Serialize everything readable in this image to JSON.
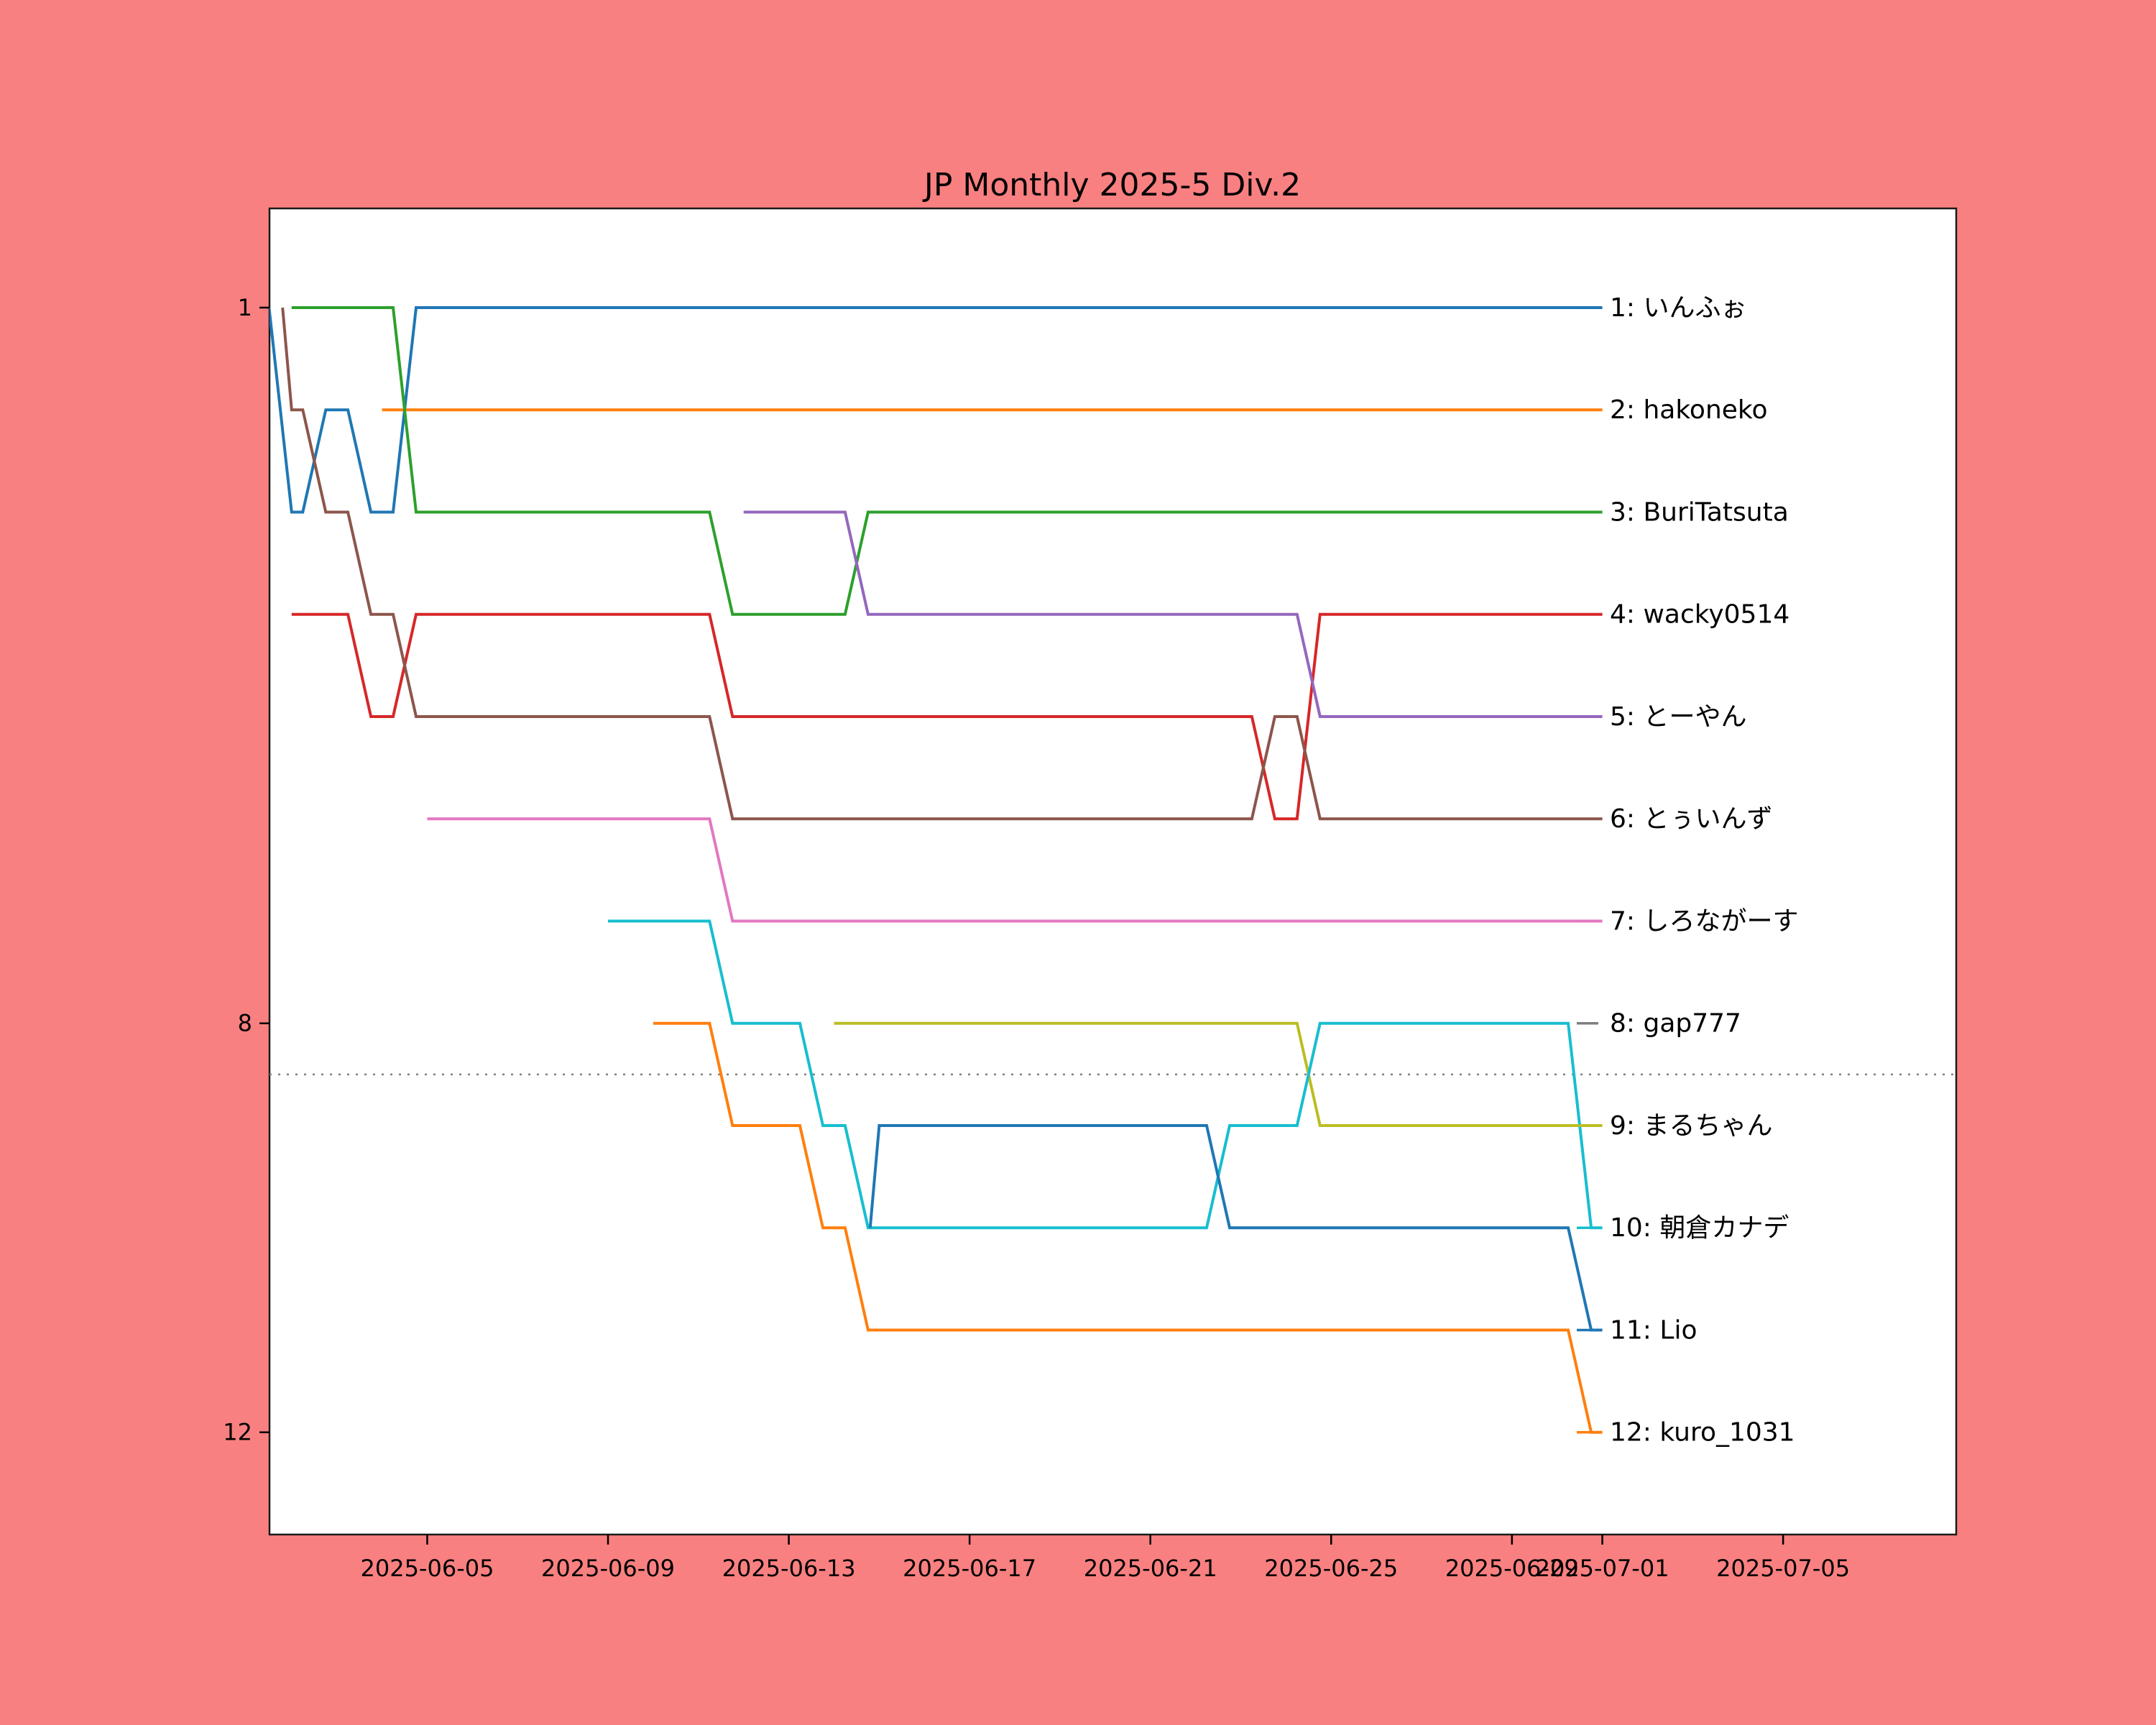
{
  "title": "JP Monthly 2025-5 Div.2",
  "colors": {
    "figure_background": "#f98080",
    "plot_background": "#ffffff",
    "plot_border": "#1a1a1a",
    "tick_text": "#000000",
    "promotion_line": "#808080"
  },
  "chart_data": {
    "type": "line",
    "subtype": "bump-ranking",
    "title": "JP Monthly 2025-5 Div.2",
    "xlabel": "",
    "ylabel": "",
    "day1_date": "2025-06-01",
    "xlim_days": [
      1.51,
      38.83
    ],
    "ylim_rank": [
      0.03,
      13.0
    ],
    "grid": false,
    "legend_position": "right-of-lines",
    "promotion_line": {
      "rank": 8.5,
      "style": "dotted",
      "color": "#808080"
    },
    "y_axis": {
      "ticks": [
        1,
        8,
        12
      ]
    },
    "x_axis": {
      "ticks": [
        {
          "label": "2025-06-05",
          "day": 5
        },
        {
          "label": "2025-06-09",
          "day": 9
        },
        {
          "label": "2025-06-13",
          "day": 13
        },
        {
          "label": "2025-06-17",
          "day": 17
        },
        {
          "label": "2025-06-21",
          "day": 21
        },
        {
          "label": "2025-06-25",
          "day": 25
        },
        {
          "label": "2025-06-29",
          "day": 29
        },
        {
          "label": "2025-07-01",
          "day": 31
        },
        {
          "label": "2025-07-05",
          "day": 35
        }
      ]
    },
    "series": [
      {
        "id": "info",
        "name": "いんふぉ",
        "label": "1: いんふぉ",
        "final_rank": 1,
        "color": "#1f77b4",
        "points_day_rank": [
          [
            1.5,
            1
          ],
          [
            2,
            3
          ],
          [
            3,
            2
          ],
          [
            4,
            3
          ],
          [
            5,
            1
          ],
          [
            31,
            1
          ]
        ]
      },
      {
        "id": "hakoneko",
        "name": "hakoneko",
        "label": "2: hakoneko",
        "final_rank": 2,
        "color": "#ff7f0e",
        "points_day_rank": [
          [
            4,
            2
          ],
          [
            31,
            2
          ]
        ]
      },
      {
        "id": "buritatsuta",
        "name": "BuriTatsuta",
        "label": "3: BuriTatsuta",
        "final_rank": 3,
        "color": "#2ca02c",
        "points_day_rank": [
          [
            2,
            1
          ],
          [
            4,
            1
          ],
          [
            5,
            3
          ],
          [
            11,
            3
          ],
          [
            12,
            4
          ],
          [
            14,
            4
          ],
          [
            15,
            3
          ],
          [
            31,
            3
          ]
        ]
      },
      {
        "id": "wacky0514",
        "name": "wacky0514",
        "label": "4: wacky0514",
        "final_rank": 4,
        "color": "#d62728",
        "points_day_rank": [
          [
            2,
            4
          ],
          [
            3,
            4
          ],
          [
            4,
            5
          ],
          [
            5,
            4
          ],
          [
            11,
            4
          ],
          [
            12,
            5
          ],
          [
            23,
            5
          ],
          [
            24,
            6
          ],
          [
            25,
            4
          ],
          [
            31,
            4
          ]
        ]
      },
      {
        "id": "toyan",
        "name": "とーやん",
        "label": "5: とーやん",
        "final_rank": 5,
        "color": "#9467bd",
        "points_day_rank": [
          [
            12,
            3
          ],
          [
            14,
            3
          ],
          [
            15,
            4
          ],
          [
            24,
            4
          ],
          [
            25,
            5
          ],
          [
            31,
            5
          ]
        ]
      },
      {
        "id": "twins",
        "name": "とぅいんず",
        "label": "6: とぅいんず",
        "final_rank": 6,
        "color": "#8c564b",
        "points_day_rank": [
          [
            1.8,
            1
          ],
          [
            2,
            2
          ],
          [
            3,
            3
          ],
          [
            4,
            4
          ],
          [
            5,
            5
          ],
          [
            11,
            5
          ],
          [
            12,
            6
          ],
          [
            23,
            6
          ],
          [
            24,
            5
          ],
          [
            25,
            6
          ],
          [
            31,
            6
          ]
        ]
      },
      {
        "id": "shironagasu",
        "name": "しろながーす",
        "label": "7: しろながーす",
        "final_rank": 7,
        "color": "#e377c2",
        "points_day_rank": [
          [
            5,
            6
          ],
          [
            11,
            6
          ],
          [
            12,
            7
          ],
          [
            31,
            7
          ]
        ]
      },
      {
        "id": "gap777",
        "name": "gap777",
        "label": "8: gap777",
        "final_rank": 8,
        "color": "#7f7f7f",
        "points_day_rank": [
          [
            31,
            8
          ]
        ]
      },
      {
        "id": "maruchan",
        "name": "まるちゃん",
        "label": "9: まるちゃん",
        "final_rank": 9,
        "color": "#bcbd22",
        "points_day_rank": [
          [
            14,
            8
          ],
          [
            24,
            8
          ],
          [
            25,
            9
          ],
          [
            31,
            9
          ]
        ]
      },
      {
        "id": "asakura",
        "name": "朝倉カナデ",
        "label": "10: 朝倉カナデ",
        "final_rank": 10,
        "color": "#17becf",
        "points_day_rank": [
          [
            9,
            7
          ],
          [
            11,
            7
          ],
          [
            12,
            8
          ],
          [
            13,
            8
          ],
          [
            14,
            9
          ],
          [
            15,
            10
          ],
          [
            22,
            10
          ],
          [
            23,
            9
          ],
          [
            24,
            9
          ],
          [
            25,
            8
          ],
          [
            30,
            8
          ],
          [
            31,
            10
          ]
        ]
      },
      {
        "id": "lio",
        "name": "Lio",
        "label": "11: Lio",
        "final_rank": 11,
        "color": "#1f77b4",
        "points_day_rank": [
          [
            14.8,
            10
          ],
          [
            15,
            9
          ],
          [
            22,
            9
          ],
          [
            23,
            10
          ],
          [
            30,
            10
          ],
          [
            31,
            11
          ]
        ]
      },
      {
        "id": "kuro_1031",
        "name": "kuro_1031",
        "label": "12: kuro_1031",
        "final_rank": 12,
        "color": "#ff7f0e",
        "points_day_rank": [
          [
            10,
            8
          ],
          [
            11,
            8
          ],
          [
            12,
            9
          ],
          [
            13,
            9
          ],
          [
            14,
            10
          ],
          [
            15,
            11
          ],
          [
            30,
            11
          ],
          [
            31,
            12
          ]
        ]
      }
    ]
  }
}
